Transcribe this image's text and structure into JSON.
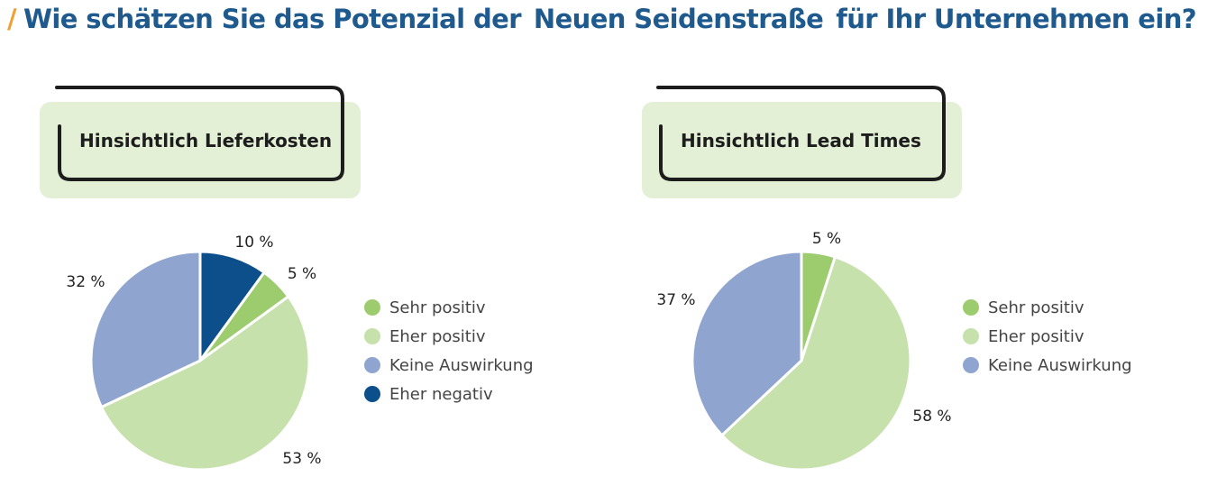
{
  "title": {
    "part1": "Wie schätzen Sie das Potenzial der",
    "part2": "Neuen Seidenstraße",
    "part3": "für Ihr Unternehmen ein?"
  },
  "colors": {
    "accent": "#f0a030",
    "title": "#1e5a8e",
    "box_bg": "#e3f0d6",
    "box_frame": "#1d1d1d",
    "Sehr positiv": "#9ccc6e",
    "Eher positiv": "#c6e1ac",
    "Keine Auswirkung": "#8fa4ce",
    "Eher negativ": "#0d4f8b"
  },
  "chart_data": [
    {
      "type": "pie",
      "title": "Hinsichtlich Lieferkosten",
      "slices": [
        {
          "label": "Eher negativ",
          "value": 10,
          "display": "10 %"
        },
        {
          "label": "Sehr positiv",
          "value": 5,
          "display": "5 %"
        },
        {
          "label": "Eher positiv",
          "value": 53,
          "display": "53 %"
        },
        {
          "label": "Keine Auswirkung",
          "value": 32,
          "display": "32 %"
        }
      ],
      "legend": [
        "Sehr positiv",
        "Eher positiv",
        "Keine Auswirkung",
        "Eher negativ"
      ],
      "legend_position": "right",
      "start": "top, clockwise"
    },
    {
      "type": "pie",
      "title": "Hinsichtlich Lead Times",
      "slices": [
        {
          "label": "Sehr positiv",
          "value": 5,
          "display": "5 %"
        },
        {
          "label": "Eher positiv",
          "value": 58,
          "display": "58 %"
        },
        {
          "label": "Keine Auswirkung",
          "value": 37,
          "display": "37 %"
        }
      ],
      "legend": [
        "Sehr positiv",
        "Eher positiv",
        "Keine Auswirkung"
      ],
      "legend_position": "right",
      "start": "top, clockwise"
    }
  ]
}
